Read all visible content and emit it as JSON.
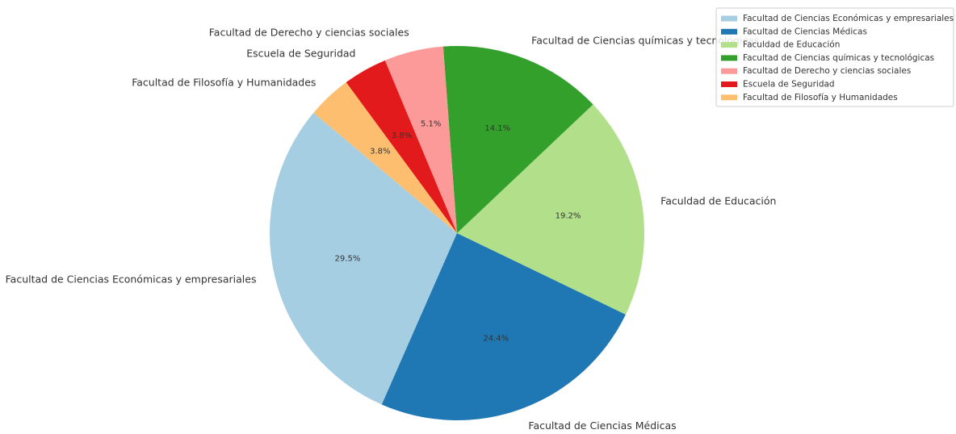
{
  "chart_data": {
    "type": "pie",
    "categories": [
      "Facultad de Ciencias Económicas y empresariales",
      "Facultad de Ciencias Médicas",
      "Faculdad de Educación",
      "Facultad de Ciencias químicas y tecnológicas",
      "Facultad de Derecho y ciencias sociales",
      "Escuela de Seguridad",
      "Facultad de Filosofía y Humanidades"
    ],
    "values": [
      29.5,
      24.4,
      19.2,
      14.1,
      5.1,
      3.8,
      3.8
    ],
    "value_labels": [
      "29.5%",
      "24.4%",
      "19.2%",
      "14.1%",
      "5.1%",
      "3.8%",
      "3.8%"
    ],
    "colors": [
      "#a6cee3",
      "#1f78b4",
      "#b2df8a",
      "#33a02c",
      "#fb9a99",
      "#e31a1c",
      "#fdbf6f"
    ],
    "legend": "upper right"
  }
}
